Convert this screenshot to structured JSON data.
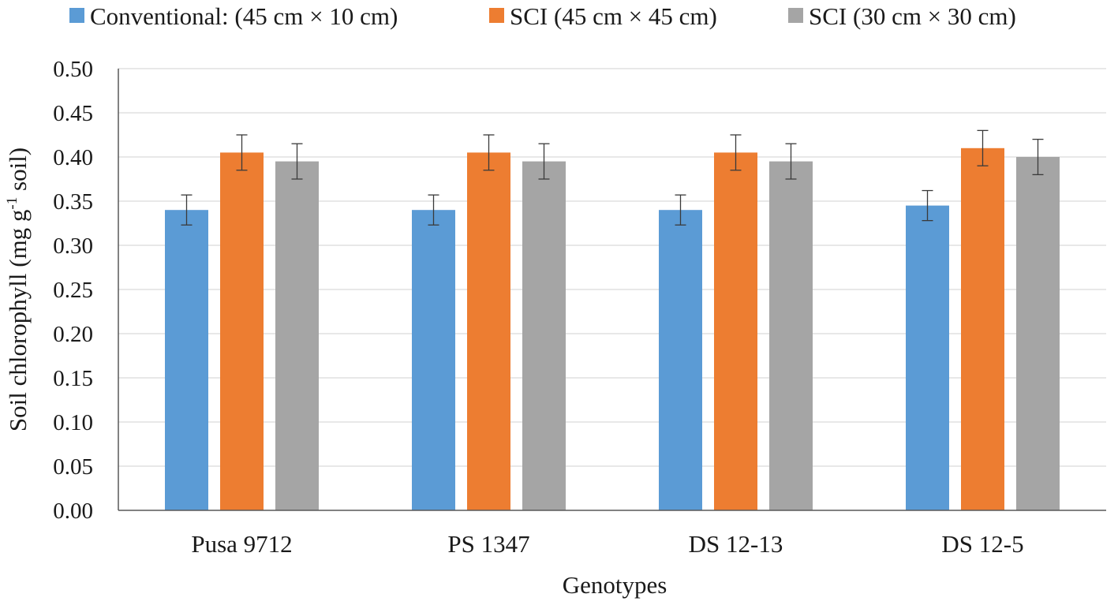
{
  "chart_data": {
    "type": "bar",
    "title": "",
    "xlabel": "Genotypes",
    "ylabel": "Soil chlorophyll (mg g",
    "ylabel_superscript": "-1",
    "ylabel_suffix": " soil)",
    "ylim": [
      0,
      0.5
    ],
    "yticks": [
      "0.00",
      "0.05",
      "0.10",
      "0.15",
      "0.20",
      "0.25",
      "0.30",
      "0.35",
      "0.40",
      "0.45",
      "0.50"
    ],
    "grid": true,
    "legend_position": "top",
    "categories": [
      "Pusa 9712",
      "PS 1347",
      "DS 12-13",
      "DS 12-5"
    ],
    "series": [
      {
        "name": "Conventional: (45 cm × 10 cm)",
        "color": "#5b9bd5",
        "values": [
          0.34,
          0.34,
          0.34,
          0.345
        ],
        "errors": [
          0.017,
          0.017,
          0.017,
          0.017
        ]
      },
      {
        "name": "SCI (45 cm × 45 cm)",
        "color": "#ed7d31",
        "values": [
          0.405,
          0.405,
          0.405,
          0.41
        ],
        "errors": [
          0.02,
          0.02,
          0.02,
          0.02
        ]
      },
      {
        "name": "SCI (30 cm × 30 cm)",
        "color": "#a5a5a5",
        "values": [
          0.395,
          0.395,
          0.395,
          0.4
        ],
        "errors": [
          0.02,
          0.02,
          0.02,
          0.02
        ]
      }
    ]
  }
}
